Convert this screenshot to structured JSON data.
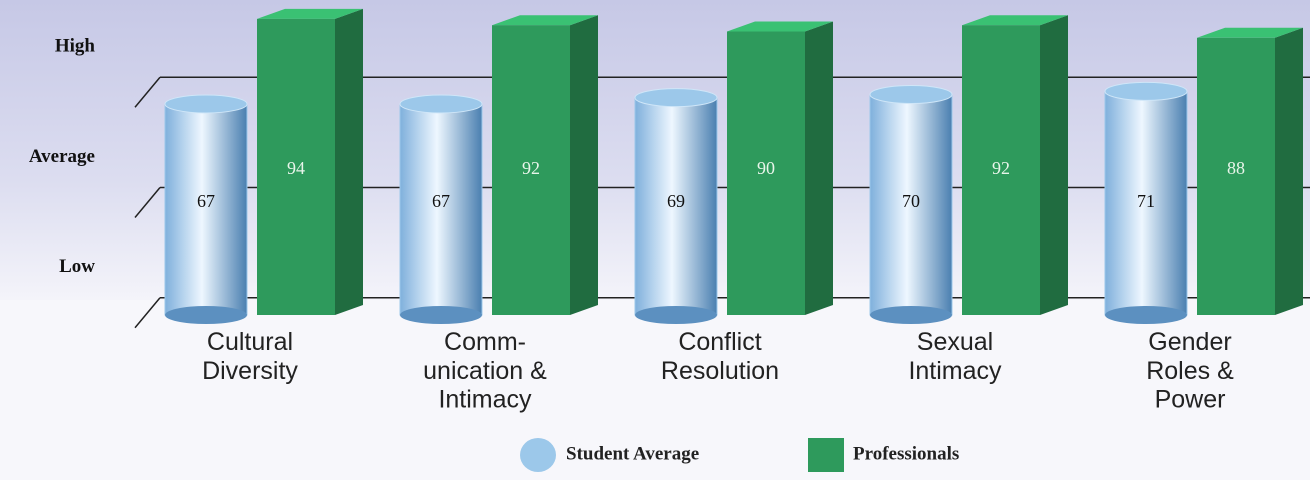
{
  "chart_data": {
    "type": "bar3d",
    "categories": [
      "Cultural\nDiversity",
      "Comm-\nunication &\nIntimacy",
      "Conflict\nResolution",
      "Sexual\nIntimacy",
      "Gender\nRoles &\nPower"
    ],
    "series": [
      {
        "name": "Student Average",
        "color": "#9cc8ea",
        "values": [
          67,
          67,
          69,
          70,
          71
        ]
      },
      {
        "name": "Professionals",
        "color": "#2e9a5c",
        "values": [
          94,
          92,
          90,
          92,
          88
        ]
      }
    ],
    "ylim": [
      0,
      100
    ],
    "yticks": [
      {
        "value": 15,
        "label": "Low"
      },
      {
        "value": 50,
        "label": "Average"
      },
      {
        "value": 85,
        "label": "High"
      }
    ],
    "grid": true
  }
}
